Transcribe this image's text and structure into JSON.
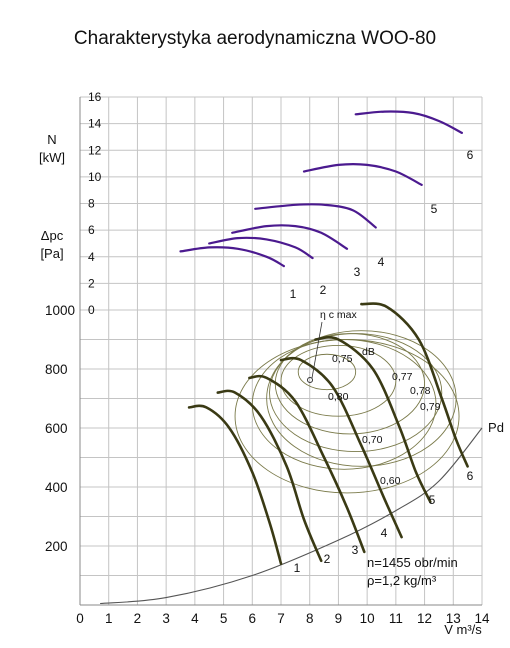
{
  "chart_data": {
    "type": "line",
    "title": "Charakterystyka aerodynamiczna WOO-80",
    "xlabel": "V m³/s",
    "ylabel_power": "N\n[kW]",
    "ylabel_pressure": "Δpc\n[Pa]",
    "x_ticks": [
      "0",
      "1",
      "2",
      "3",
      "4",
      "5",
      "6",
      "7",
      "8",
      "9",
      "10",
      "11",
      "12",
      "13",
      "14"
    ],
    "power_ticks": [
      "0",
      "2",
      "4",
      "6",
      "8",
      "10",
      "12",
      "14",
      "16"
    ],
    "pressure_ticks": [
      "200",
      "400",
      "600",
      "800",
      "1000"
    ],
    "xlim": [
      0,
      14
    ],
    "power_ylim": [
      0,
      16
    ],
    "pressure_ylim": [
      0,
      1000
    ],
    "grid": true,
    "operating_info": [
      "n=1455 obr/min",
      "ρ=1,2 kg/m³"
    ],
    "pd_label": "Pd",
    "eta_label": "η c max",
    "dB_label": "dB",
    "curve_numbers": [
      "1",
      "2",
      "3",
      "4",
      "5",
      "6"
    ],
    "colors": {
      "power": "#4b1a8f",
      "pressure": "#3a3a14",
      "efficiency": "#7a7a4a",
      "grid": "#c4c4c4"
    },
    "power_series": [
      {
        "name": "1",
        "x": [
          3.5,
          4.5,
          5.5,
          6.5,
          7.1
        ],
        "y": [
          4.4,
          4.7,
          4.6,
          4.0,
          3.3
        ]
      },
      {
        "name": "2",
        "x": [
          4.5,
          5.5,
          6.5,
          7.5,
          8.1
        ],
        "y": [
          5.0,
          5.4,
          5.3,
          4.7,
          3.9
        ]
      },
      {
        "name": "3",
        "x": [
          5.3,
          6.5,
          7.5,
          8.4,
          9.3
        ],
        "y": [
          5.8,
          6.3,
          6.3,
          5.8,
          4.6
        ]
      },
      {
        "name": "4",
        "x": [
          6.1,
          7.5,
          8.5,
          9.5,
          10.3
        ],
        "y": [
          7.6,
          7.9,
          7.9,
          7.5,
          6.2
        ]
      },
      {
        "name": "5",
        "x": [
          7.8,
          9.0,
          10.0,
          11.0,
          11.9
        ],
        "y": [
          10.4,
          10.9,
          10.9,
          10.4,
          9.4
        ]
      },
      {
        "name": "6",
        "x": [
          9.6,
          10.6,
          11.6,
          12.5,
          13.3
        ],
        "y": [
          14.7,
          14.9,
          14.8,
          14.2,
          13.3
        ]
      }
    ],
    "pressure_series": [
      {
        "name": "1",
        "x": [
          3.8,
          4.4,
          5.2,
          6.0,
          6.6,
          7.0
        ],
        "y": [
          670,
          670,
          600,
          450,
          280,
          140
        ]
      },
      {
        "name": "2",
        "x": [
          4.8,
          5.4,
          6.3,
          7.2,
          7.8,
          8.4
        ],
        "y": [
          720,
          720,
          640,
          470,
          290,
          150
        ]
      },
      {
        "name": "3",
        "x": [
          5.9,
          6.5,
          7.5,
          8.5,
          9.3,
          9.9
        ],
        "y": [
          770,
          770,
          690,
          500,
          330,
          180
        ]
      },
      {
        "name": "4",
        "x": [
          7.0,
          7.7,
          8.8,
          9.8,
          10.6,
          11.2
        ],
        "y": [
          830,
          830,
          740,
          540,
          360,
          230
        ]
      },
      {
        "name": "5",
        "x": [
          8.2,
          9.0,
          10.2,
          11.1,
          11.7,
          12.2
        ],
        "y": [
          900,
          900,
          800,
          610,
          450,
          350
        ]
      },
      {
        "name": "6",
        "x": [
          9.8,
          10.7,
          11.8,
          12.6,
          13.1,
          13.5
        ],
        "y": [
          1020,
          1010,
          900,
          700,
          560,
          470
        ]
      }
    ],
    "pd_curve": {
      "x": [
        0.7,
        3,
        6,
        9,
        11,
        12.5,
        14
      ],
      "y": [
        5,
        25,
        100,
        220,
        320,
        420,
        600
      ]
    },
    "efficiency_contours": [
      {
        "label": "0,60",
        "cx": 9.3,
        "cy": 640,
        "rx": 3.9,
        "ry": 260
      },
      {
        "label": "0,70",
        "cx": 9.2,
        "cy": 680,
        "rx": 3.2,
        "ry": 220
      },
      {
        "label": "0,75",
        "cx": 9.0,
        "cy": 760,
        "rx": 2.0,
        "ry": 120
      },
      {
        "label": "0,77",
        "cx": 9.4,
        "cy": 750,
        "rx": 2.6,
        "ry": 170
      },
      {
        "label": "0,78",
        "cx": 9.6,
        "cy": 720,
        "rx": 3.0,
        "ry": 200
      },
      {
        "label": "0,79",
        "cx": 9.8,
        "cy": 700,
        "rx": 3.3,
        "ry": 230
      },
      {
        "label": "0,80",
        "cx": 8.6,
        "cy": 790,
        "rx": 1.0,
        "ry": 60
      }
    ]
  }
}
